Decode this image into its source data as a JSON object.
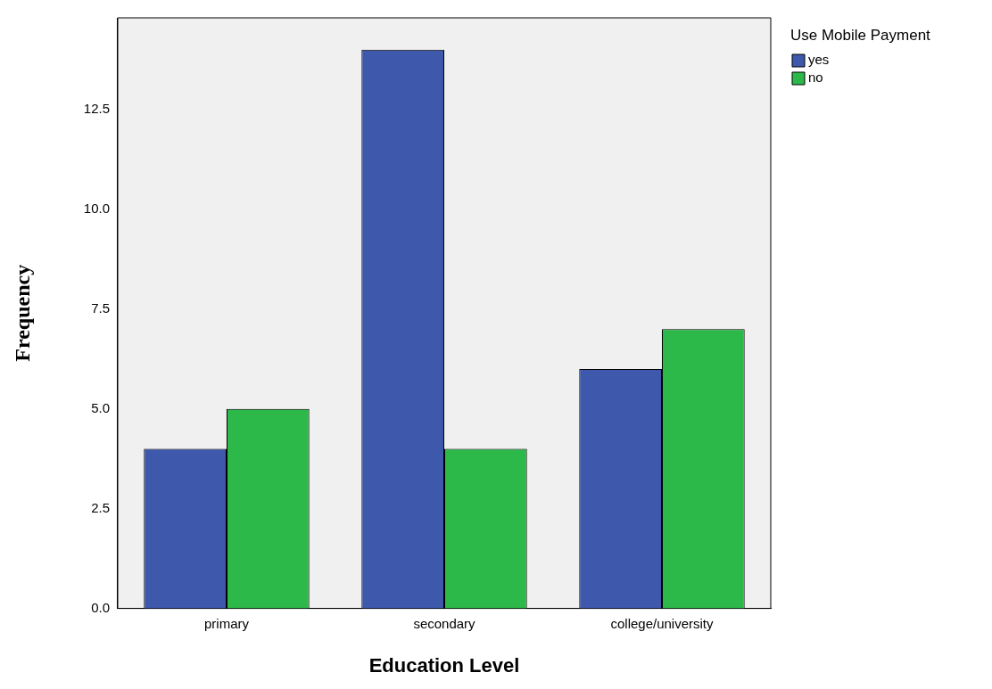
{
  "chart_data": {
    "type": "bar",
    "xlabel": "Education Level",
    "ylabel": "Frequency",
    "legend_title": "Use Mobile Payment",
    "categories": [
      "primary",
      "secondary",
      "college/university"
    ],
    "series": [
      {
        "name": "yes",
        "color": "#3e58ac",
        "values": [
          4,
          14,
          6
        ]
      },
      {
        "name": "no",
        "color": "#2db84a",
        "values": [
          5,
          4,
          7
        ]
      }
    ],
    "ylim": [
      0,
      14.8
    ],
    "yticks": [
      {
        "value": 0,
        "label": "0.0"
      },
      {
        "value": 2.5,
        "label": "2.5"
      },
      {
        "value": 5,
        "label": "5.0"
      },
      {
        "value": 7.5,
        "label": "7.5"
      },
      {
        "value": 10,
        "label": "10.0"
      },
      {
        "value": 12.5,
        "label": "12.5"
      }
    ],
    "grid": false,
    "legend": "top right"
  }
}
